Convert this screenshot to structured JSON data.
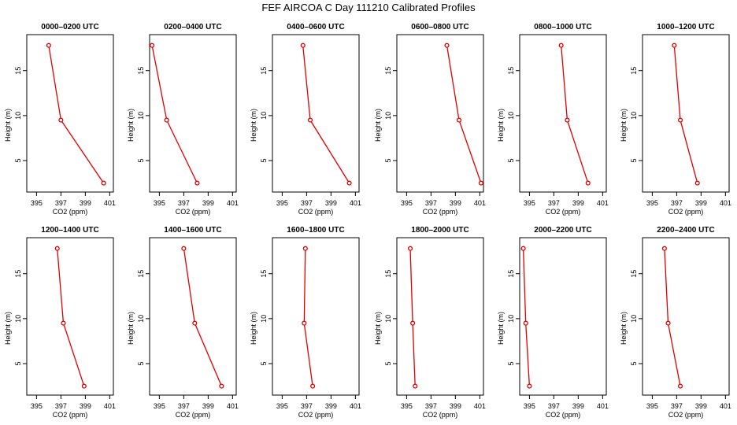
{
  "title": "FEF AIRCOA C  Day 111210  Calibrated Profiles",
  "chart_data": {
    "type": "line",
    "xlabel": "CO2 (ppm)",
    "ylabel": "Height (m)",
    "xlim": [
      394.2,
      401.3
    ],
    "ylim": [
      1.5,
      19.0
    ],
    "xticks": [
      395,
      397,
      399,
      401
    ],
    "yticks": [
      5,
      10,
      15
    ],
    "panels": [
      {
        "title": "0000–0200 UTC",
        "x": [
          396.0,
          397.0,
          400.5
        ],
        "y": [
          17.8,
          9.5,
          2.5
        ]
      },
      {
        "title": "0200–0400 UTC",
        "x": [
          394.4,
          395.6,
          398.1
        ],
        "y": [
          17.8,
          9.5,
          2.5
        ]
      },
      {
        "title": "0400–0600 UTC",
        "x": [
          396.7,
          397.3,
          400.5
        ],
        "y": [
          17.8,
          9.5,
          2.5
        ]
      },
      {
        "title": "0600–0800 UTC",
        "x": [
          398.3,
          399.3,
          401.1
        ],
        "y": [
          17.8,
          9.5,
          2.5
        ]
      },
      {
        "title": "0800–1000 UTC",
        "x": [
          397.6,
          398.1,
          399.8
        ],
        "y": [
          17.8,
          9.5,
          2.5
        ]
      },
      {
        "title": "1000–1200 UTC",
        "x": [
          396.8,
          397.3,
          398.7
        ],
        "y": [
          17.8,
          9.5,
          2.5
        ]
      },
      {
        "title": "1200–1400 UTC",
        "x": [
          396.7,
          397.2,
          398.9
        ],
        "y": [
          17.8,
          9.5,
          2.5
        ]
      },
      {
        "title": "1400–1600 UTC",
        "x": [
          397.0,
          397.9,
          400.1
        ],
        "y": [
          17.8,
          9.5,
          2.5
        ]
      },
      {
        "title": "1600–1800 UTC",
        "x": [
          396.9,
          396.8,
          397.5
        ],
        "y": [
          17.8,
          9.5,
          2.5
        ]
      },
      {
        "title": "1800–2000 UTC",
        "x": [
          395.3,
          395.5,
          395.7
        ],
        "y": [
          17.8,
          9.5,
          2.5
        ]
      },
      {
        "title": "2000–2200 UTC",
        "x": [
          394.5,
          394.7,
          395.0
        ],
        "y": [
          17.8,
          9.5,
          2.5
        ]
      },
      {
        "title": "2200–2400 UTC",
        "x": [
          396.0,
          396.3,
          397.3
        ],
        "y": [
          17.8,
          9.5,
          2.5
        ]
      }
    ]
  }
}
